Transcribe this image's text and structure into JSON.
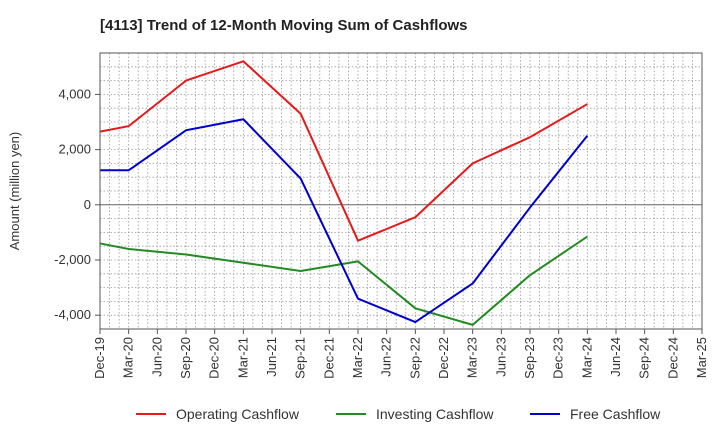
{
  "chart_data": {
    "type": "line",
    "title": "[4113]  Trend of 12-Month Moving Sum of Cashflows",
    "ylabel": "Amount (million yen)",
    "xlabel": "",
    "ylim": [
      -4500,
      5500
    ],
    "yticks": [
      -4000,
      -2000,
      0,
      2000,
      4000
    ],
    "ytick_labels": [
      "-4,000",
      "-2,000",
      "0",
      "2,000",
      "4,000"
    ],
    "categories": [
      "Dec-19",
      "Mar-20",
      "Jun-20",
      "Sep-20",
      "Dec-20",
      "Mar-21",
      "Jun-21",
      "Sep-21",
      "Dec-21",
      "Mar-22",
      "Jun-22",
      "Sep-22",
      "Dec-22",
      "Mar-23",
      "Jun-23",
      "Sep-23",
      "Dec-23",
      "Mar-24",
      "Jun-24",
      "Sep-24",
      "Dec-24",
      "Mar-25"
    ],
    "grid": true,
    "legend_position": "bottom",
    "series": [
      {
        "name": "Operating Cashflow",
        "color": "#e41a1c",
        "points": [
          [
            "Dec-19",
            2650
          ],
          [
            "Mar-20",
            2850
          ],
          [
            "Sep-20",
            4500
          ],
          [
            "Mar-21",
            5200
          ],
          [
            "Sep-21",
            3300
          ],
          [
            "Mar-22",
            -1300
          ],
          [
            "Sep-22",
            -450
          ],
          [
            "Mar-23",
            1500
          ],
          [
            "Sep-23",
            2450
          ],
          [
            "Mar-24",
            3650
          ]
        ]
      },
      {
        "name": "Investing Cashflow",
        "color": "#228b22",
        "points": [
          [
            "Dec-19",
            -1400
          ],
          [
            "Mar-20",
            -1600
          ],
          [
            "Sep-20",
            -1800
          ],
          [
            "Mar-21",
            -2100
          ],
          [
            "Sep-21",
            -2400
          ],
          [
            "Mar-22",
            -2050
          ],
          [
            "Sep-22",
            -3750
          ],
          [
            "Mar-23",
            -4350
          ],
          [
            "Sep-23",
            -2550
          ],
          [
            "Mar-24",
            -1150
          ]
        ]
      },
      {
        "name": "Free Cashflow",
        "color": "#0000cd",
        "points": [
          [
            "Dec-19",
            1250
          ],
          [
            "Mar-20",
            1250
          ],
          [
            "Sep-20",
            2700
          ],
          [
            "Mar-21",
            3100
          ],
          [
            "Sep-21",
            950
          ],
          [
            "Mar-22",
            -3400
          ],
          [
            "Sep-22",
            -4250
          ],
          [
            "Mar-23",
            -2850
          ],
          [
            "Sep-23",
            -100
          ],
          [
            "Mar-24",
            2500
          ]
        ]
      }
    ]
  }
}
